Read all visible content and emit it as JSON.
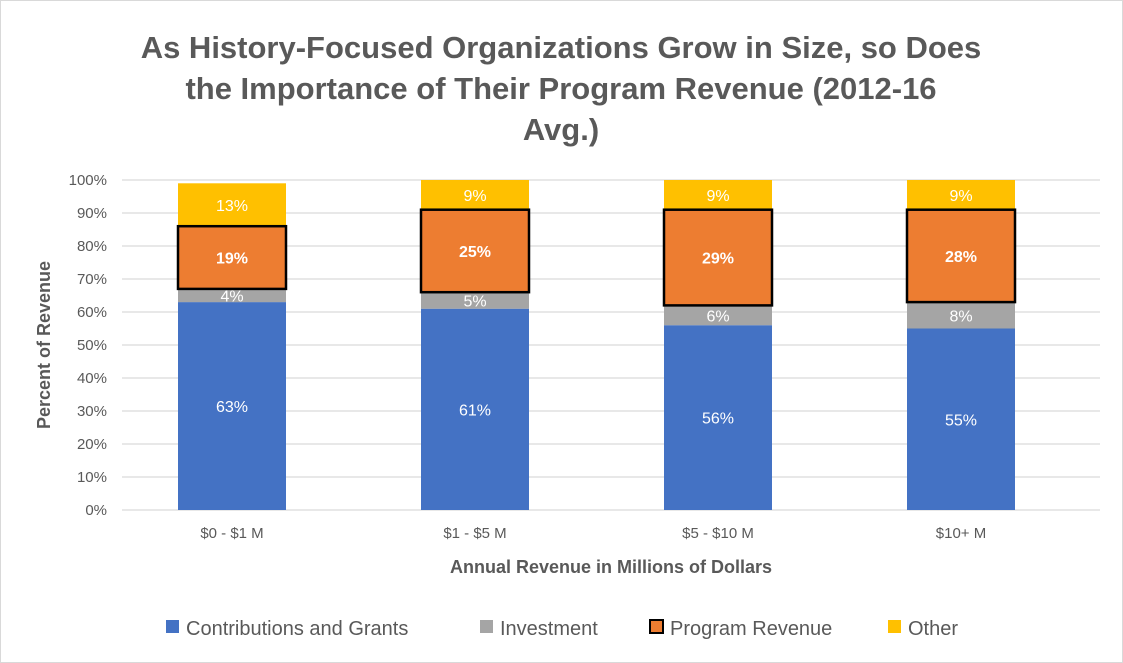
{
  "chart_data": {
    "type": "bar",
    "stacked": true,
    "percent_stacked": true,
    "title_lines": [
      "As History-Focused Organizations Grow in Size, so Does",
      "the Importance of Their Program Revenue (2012-16",
      "Avg.)"
    ],
    "xlabel": "Annual Revenue in Millions of Dollars",
    "ylabel": "Percent of Revenue",
    "ylim": [
      0,
      100
    ],
    "yticks": [
      "0%",
      "10%",
      "20%",
      "30%",
      "40%",
      "50%",
      "60%",
      "70%",
      "80%",
      "90%",
      "100%"
    ],
    "grid": true,
    "legend_position": "bottom",
    "categories": [
      "$0 - $1 M",
      "$1 - $5 M",
      "$5 - $10 M",
      "$10+ M"
    ],
    "series": [
      {
        "name": "Contributions and Grants",
        "color": "#4472c4",
        "values": [
          63,
          61,
          56,
          55
        ],
        "labels": [
          "63%",
          "61%",
          "56%",
          "55%"
        ],
        "outlined": false,
        "bold_labels": false
      },
      {
        "name": "Investment",
        "color": "#a5a5a5",
        "values": [
          4,
          5,
          6,
          8
        ],
        "labels": [
          "4%",
          "5%",
          "6%",
          "8%"
        ],
        "outlined": false,
        "bold_labels": false
      },
      {
        "name": "Program Revenue",
        "color": "#ed7d31",
        "values": [
          19,
          25,
          29,
          28
        ],
        "labels": [
          "19%",
          "25%",
          "29%",
          "28%"
        ],
        "outlined": true,
        "bold_labels": true
      },
      {
        "name": "Other",
        "color": "#ffc000",
        "values": [
          13,
          9,
          9,
          9
        ],
        "labels": [
          "13%",
          "9%",
          "9%",
          "9%"
        ],
        "outlined": false,
        "bold_labels": false
      }
    ]
  }
}
